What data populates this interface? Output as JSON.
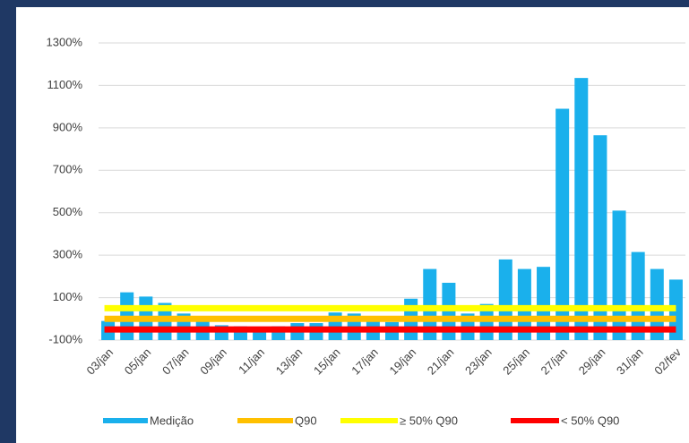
{
  "chart_data": {
    "type": "bar",
    "categories": [
      "03/jan",
      null,
      "05/jan",
      null,
      "07/jan",
      null,
      "09/jan",
      null,
      "11/jan",
      null,
      "13/jan",
      null,
      "15/jan",
      null,
      "17/jan",
      null,
      "19/jan",
      null,
      "21/jan",
      null,
      "23/jan",
      null,
      "25/jan",
      null,
      "27/jan",
      null,
      "29/jan",
      null,
      "31/jan",
      null,
      "02/fev"
    ],
    "series": [
      {
        "name": "Medição",
        "type": "bar",
        "color": "#1ab0ec",
        "values": [
          -10,
          125,
          105,
          75,
          25,
          -10,
          -30,
          -35,
          -45,
          -35,
          -20,
          -20,
          30,
          25,
          -10,
          -15,
          95,
          235,
          170,
          25,
          70,
          280,
          235,
          245,
          990,
          1135,
          865,
          510,
          315,
          235,
          185
        ]
      },
      {
        "name": "Q90",
        "type": "line",
        "color": "#ffc000",
        "values": [
          0,
          0,
          0,
          0,
          0,
          0,
          0,
          0,
          0,
          0,
          0,
          0,
          0,
          0,
          0,
          0,
          0,
          0,
          0,
          0,
          0,
          0,
          0,
          0,
          0,
          0,
          0,
          0,
          0,
          0,
          0
        ]
      },
      {
        "name": "≥ 50% Q90",
        "type": "line",
        "color": "#ffff00",
        "values": [
          50,
          50,
          50,
          50,
          50,
          50,
          50,
          50,
          50,
          50,
          50,
          50,
          50,
          50,
          50,
          50,
          50,
          50,
          50,
          50,
          50,
          50,
          50,
          50,
          50,
          50,
          50,
          50,
          50,
          50,
          50
        ]
      },
      {
        "name": "< 50% Q90",
        "type": "line",
        "color": "#ff0000",
        "values": [
          -50,
          -50,
          -50,
          -50,
          -50,
          -50,
          -50,
          -50,
          -50,
          -50,
          -50,
          -50,
          -50,
          -50,
          -50,
          -50,
          -50,
          -50,
          -50,
          -50,
          -50,
          -50,
          -50,
          -50,
          -50,
          -50,
          -50,
          -50,
          -50,
          -50,
          -50
        ]
      }
    ],
    "ylim": [
      -100,
      1300
    ],
    "yticks": [
      {
        "value": -100,
        "label": "-100%"
      },
      {
        "value": 100,
        "label": "100%"
      },
      {
        "value": 300,
        "label": "300%"
      },
      {
        "value": 500,
        "label": "500%"
      },
      {
        "value": 700,
        "label": "700%"
      },
      {
        "value": 900,
        "label": "900%"
      },
      {
        "value": 1100,
        "label": "1100%"
      },
      {
        "value": 1300,
        "label": "1300%"
      }
    ],
    "grid": true,
    "legend": "bottom"
  }
}
